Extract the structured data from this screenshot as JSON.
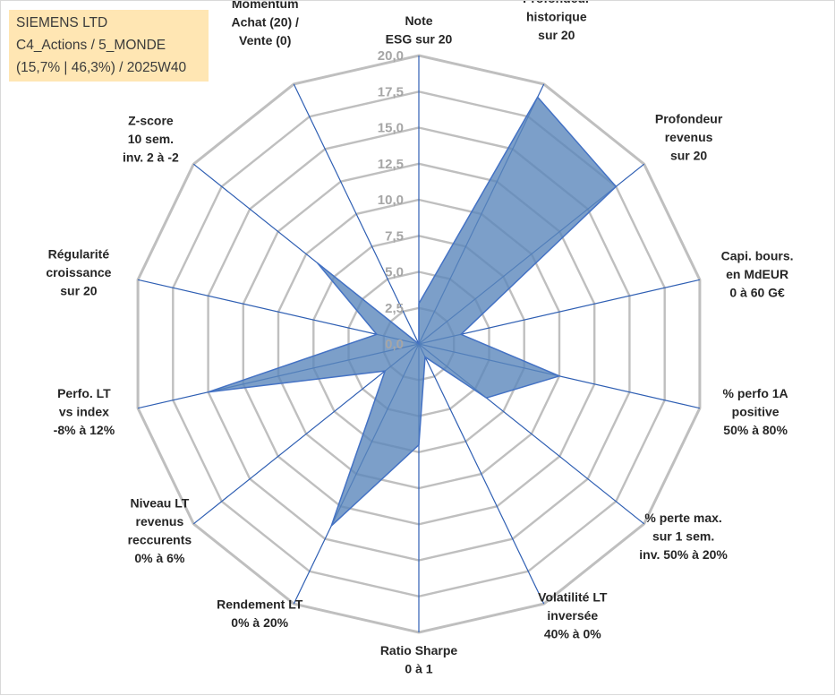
{
  "header": {
    "line1": "SIEMENS LTD",
    "line2": "C4_Actions / 5_MONDE",
    "line3": "(15,7% | 46,3%) / 2025W40"
  },
  "colors": {
    "fill": "#5b87bb",
    "stroke": "#4472c4",
    "spoke": "#2f5fb3",
    "grid": "#bfbfbf",
    "title_bg": "#ffe6b3"
  },
  "chart_data": {
    "type": "radar",
    "r_range": [
      0,
      20
    ],
    "grid": true,
    "tick_labels": [
      "0,0",
      "2,5",
      "5,0",
      "7,5",
      "10,0",
      "12,5",
      "15,0",
      "17,5",
      "20,0"
    ],
    "axes": [
      {
        "label": [
          "Note",
          "ESG sur 20"
        ]
      },
      {
        "label": [
          "Profondeur",
          "historique",
          "sur 20"
        ]
      },
      {
        "label": [
          "Profondeur",
          "revenus",
          "sur 20"
        ]
      },
      {
        "label": [
          "Capi. bours.",
          "en MdEUR",
          "0 à 60 G€"
        ]
      },
      {
        "label": [
          "% perfo 1A",
          "positive",
          "50% à 80%"
        ]
      },
      {
        "label": [
          "% perte max.",
          "sur 1 sem.",
          "inv. 50% à 20%"
        ]
      },
      {
        "label": [
          "Volatilité LT",
          "inversée",
          "40% à 0%"
        ]
      },
      {
        "label": [
          "Ratio Sharpe",
          "0 à 1"
        ]
      },
      {
        "label": [
          "Rendement LT",
          "0% à 20%"
        ]
      },
      {
        "label": [
          "Niveau LT",
          "revenus",
          "reccurents",
          "0% à 6%"
        ]
      },
      {
        "label": [
          "Perfo. LT",
          "vs index",
          "-8% à 12%"
        ]
      },
      {
        "label": [
          "Régularité",
          "croissance",
          "sur 20"
        ]
      },
      {
        "label": [
          "Z-score",
          "10 sem.",
          "inv. 2 à -2"
        ]
      },
      {
        "label": [
          "Momentum",
          "Achat (20) /",
          "Vente (0)"
        ]
      }
    ],
    "series": [
      {
        "values": [
          2.8,
          19.0,
          17.5,
          3.0,
          10.0,
          6.0,
          1.0,
          7.0,
          14.0,
          3.0,
          15.0,
          3.0,
          9.0,
          0.0
        ]
      }
    ]
  }
}
